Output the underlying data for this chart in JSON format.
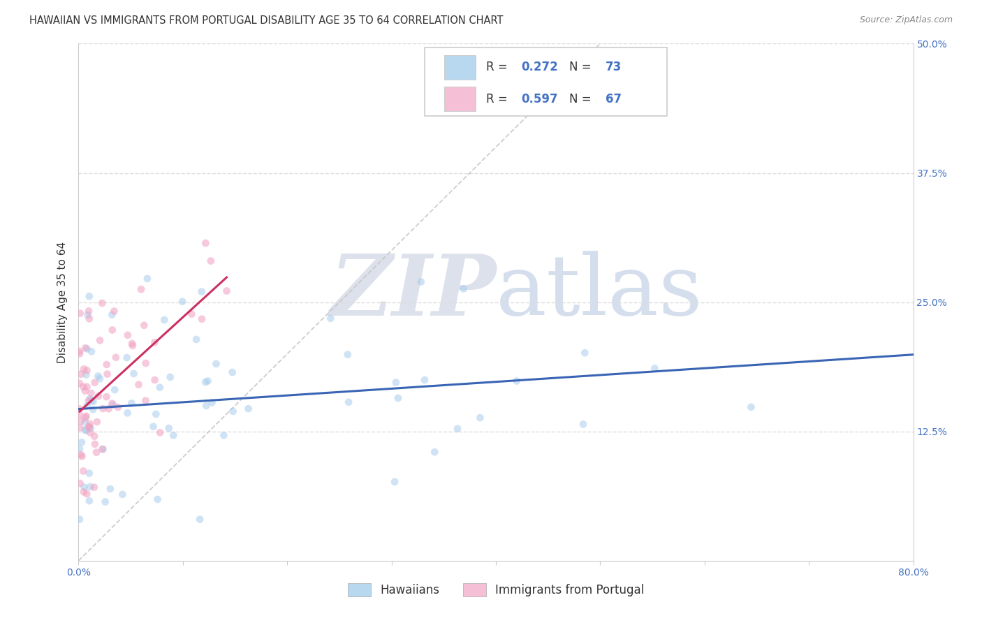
{
  "title": "HAWAIIAN VS IMMIGRANTS FROM PORTUGAL DISABILITY AGE 35 TO 64 CORRELATION CHART",
  "source": "Source: ZipAtlas.com",
  "ylabel": "Disability Age 35 to 64",
  "xlim": [
    0.0,
    0.8
  ],
  "ylim": [
    0.0,
    0.5
  ],
  "hawaii_R": 0.272,
  "hawaii_N": 73,
  "portugal_R": 0.597,
  "portugal_N": 67,
  "hawaii_color": "#A8CCEE",
  "portugal_color": "#F0A0C0",
  "hawaii_line_color": "#3A65B5",
  "portugal_line_color": "#CC3060",
  "ref_line_color": "#C8C8C8",
  "legend_hawaii_fill": "#B8D8F0",
  "legend_portugal_fill": "#F5C0D5",
  "title_fontsize": 10.5,
  "axis_label_fontsize": 11,
  "tick_fontsize": 10,
  "source_fontsize": 9,
  "marker_size": 60,
  "marker_alpha": 0.55,
  "background_color": "#FFFFFF",
  "grid_color": "#DEDEDE",
  "axis_color": "#4472C4",
  "text_color": "#333333",
  "zip_color": "#DADDE8",
  "atlas_color": "#C8D4E8"
}
